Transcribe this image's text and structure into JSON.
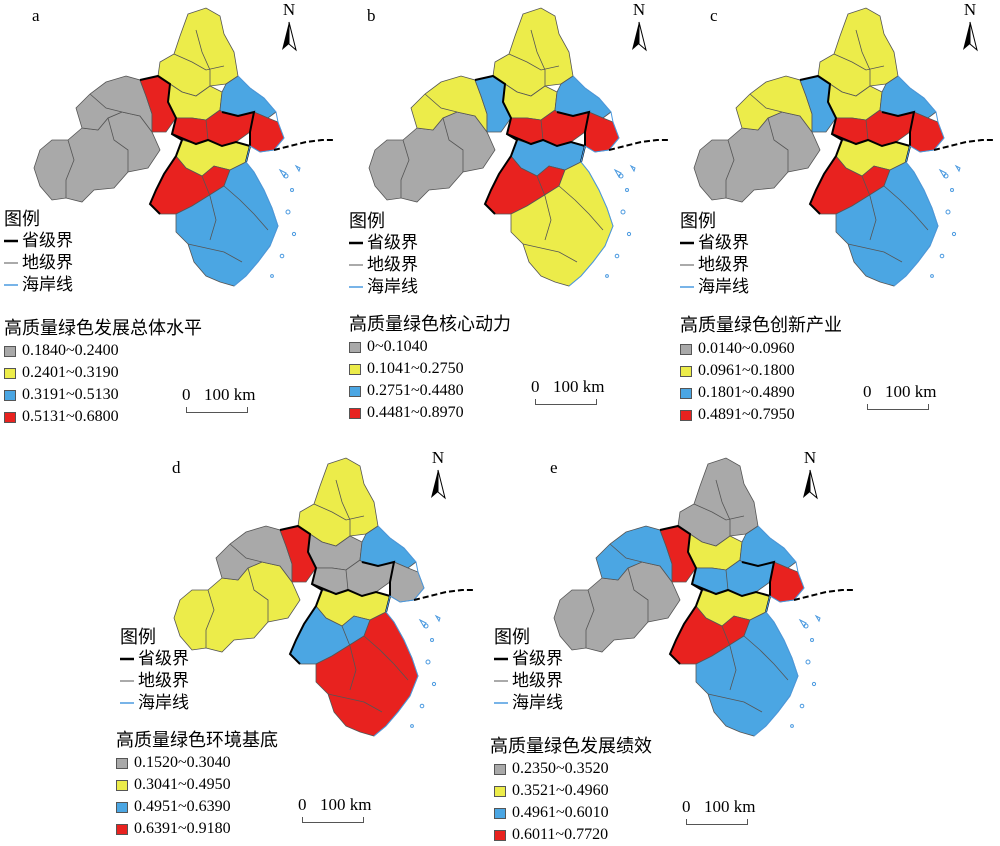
{
  "legend": {
    "title": "图例",
    "province": "省级界",
    "prefecture": "地级界",
    "coast": "海岸线"
  },
  "scale": {
    "zero": "0",
    "label": "100 km"
  },
  "north": "N",
  "colors": {
    "gray": "#a9a9a9",
    "yellow": "#ecec4a",
    "blue": "#4ba6e3",
    "red": "#e8221f",
    "province_line": "#000000",
    "prefecture_line": "#555555",
    "coast_line": "#4b9ae0"
  },
  "panels": [
    {
      "label": "a",
      "title": "高质量绿色发展总体水平",
      "classes": [
        "0.1840~0.2400",
        "0.2401~0.3190",
        "0.3191~0.5130",
        "0.5131~0.6800"
      ],
      "fills": {
        "anhui_w": "gray",
        "anhui_c": "gray",
        "anhui_ne": "red",
        "jiangsu_n": "yellow",
        "jiangsu_c": "yellow",
        "jiangsu_e": "blue",
        "jiangsu_s": "red",
        "shanghai": "red",
        "zj_n": "yellow",
        "zj_c": "red",
        "zj_s": "blue"
      }
    },
    {
      "label": "b",
      "title": "高质量绿色核心动力",
      "classes": [
        "0~0.1040",
        "0.1041~0.2750",
        "0.2751~0.4480",
        "0.4481~0.8970"
      ],
      "fills": {
        "anhui_w": "gray",
        "anhui_c": "yellow",
        "anhui_ne": "blue",
        "jiangsu_n": "yellow",
        "jiangsu_c": "yellow",
        "jiangsu_e": "blue",
        "jiangsu_s": "red",
        "shanghai": "red",
        "zj_n": "blue",
        "zj_c": "red",
        "zj_s": "yellow"
      }
    },
    {
      "label": "c",
      "title": "高质量绿色创新产业",
      "classes": [
        "0.0140~0.0960",
        "0.0961~0.1800",
        "0.1801~0.4890",
        "0.4891~0.7950"
      ],
      "fills": {
        "anhui_w": "gray",
        "anhui_c": "yellow",
        "anhui_ne": "blue",
        "jiangsu_n": "yellow",
        "jiangsu_c": "yellow",
        "jiangsu_e": "blue",
        "jiangsu_s": "red",
        "shanghai": "red",
        "zj_n": "yellow",
        "zj_c": "red",
        "zj_s": "blue"
      }
    },
    {
      "label": "d",
      "title": "高质量绿色环境基底",
      "classes": [
        "0.1520~0.3040",
        "0.3041~0.4950",
        "0.4951~0.6390",
        "0.6391~0.9180"
      ],
      "fills": {
        "anhui_w": "yellow",
        "anhui_c": "gray",
        "anhui_ne": "red",
        "jiangsu_n": "yellow",
        "jiangsu_c": "gray",
        "jiangsu_e": "blue",
        "jiangsu_s": "gray",
        "shanghai": "gray",
        "zj_n": "yellow",
        "zj_c": "blue",
        "zj_s": "red"
      }
    },
    {
      "label": "e",
      "title": "高质量绿色发展绩效",
      "classes": [
        "0.2350~0.3520",
        "0.3521~0.4960",
        "0.4961~0.6010",
        "0.6011~0.7720"
      ],
      "fills": {
        "anhui_w": "gray",
        "anhui_c": "blue",
        "anhui_ne": "red",
        "jiangsu_n": "gray",
        "jiangsu_c": "yellow",
        "jiangsu_e": "blue",
        "jiangsu_s": "blue",
        "shanghai": "red",
        "zj_n": "yellow",
        "zj_c": "red",
        "zj_s": "blue"
      }
    }
  ]
}
